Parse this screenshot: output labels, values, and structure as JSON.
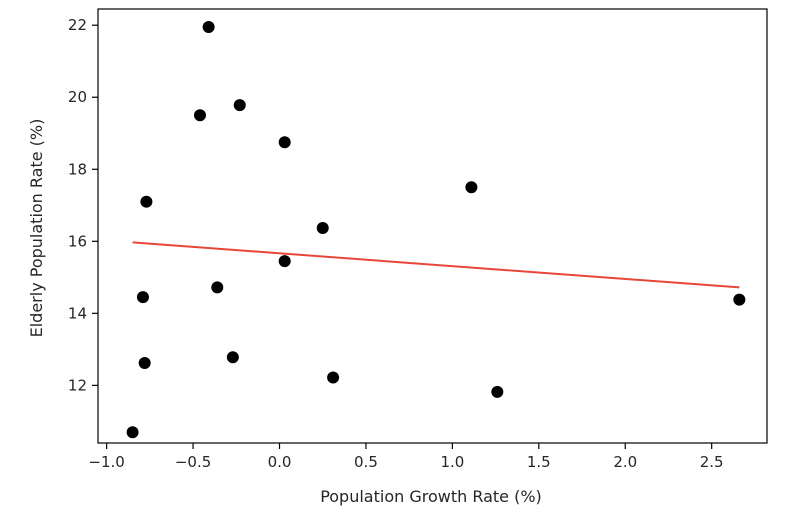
{
  "chart_data": {
    "type": "scatter",
    "title": "",
    "xlabel": "Population Growth Rate (%)",
    "ylabel": "Elderly Population Rate (%)",
    "xlim": [
      -1.05,
      2.82
    ],
    "ylim": [
      10.4,
      22.45
    ],
    "x_ticks": [
      -1.0,
      -0.5,
      0.0,
      0.5,
      1.0,
      1.5,
      2.0,
      2.5
    ],
    "x_tick_labels": [
      "−1.0",
      "−0.5",
      "0.0",
      "0.5",
      "1.0",
      "1.5",
      "2.0",
      "2.5"
    ],
    "y_ticks": [
      12,
      14,
      16,
      18,
      20,
      22
    ],
    "y_tick_labels": [
      "12",
      "14",
      "16",
      "18",
      "20",
      "22"
    ],
    "grid": false,
    "legend": "none",
    "series": [
      {
        "kind": "scatter",
        "color": "#000000",
        "points": [
          {
            "x": -0.85,
            "y": 10.7
          },
          {
            "x": -0.77,
            "y": 17.1
          },
          {
            "x": -0.79,
            "y": 14.45
          },
          {
            "x": -0.78,
            "y": 12.62
          },
          {
            "x": -0.46,
            "y": 19.5
          },
          {
            "x": -0.41,
            "y": 21.95
          },
          {
            "x": -0.36,
            "y": 14.72
          },
          {
            "x": -0.27,
            "y": 12.78
          },
          {
            "x": -0.23,
            "y": 19.78
          },
          {
            "x": 0.03,
            "y": 18.75
          },
          {
            "x": 0.03,
            "y": 15.45
          },
          {
            "x": 0.25,
            "y": 16.37
          },
          {
            "x": 0.31,
            "y": 12.22
          },
          {
            "x": 1.11,
            "y": 17.5
          },
          {
            "x": 1.26,
            "y": 11.82
          },
          {
            "x": 2.66,
            "y": 14.38
          }
        ]
      },
      {
        "kind": "line",
        "color": "#e8463a",
        "points": [
          {
            "x": -0.85,
            "y": 15.97
          },
          {
            "x": 2.66,
            "y": 14.72
          }
        ]
      }
    ]
  }
}
